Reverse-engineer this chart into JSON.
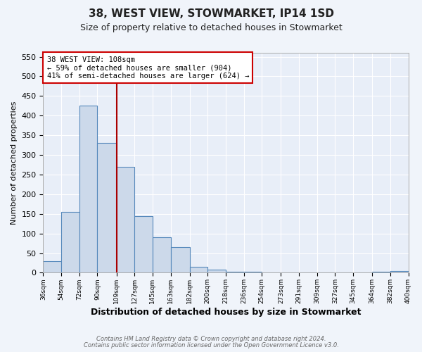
{
  "title1": "38, WEST VIEW, STOWMARKET, IP14 1SD",
  "title2": "Size of property relative to detached houses in Stowmarket",
  "xlabel": "Distribution of detached houses by size in Stowmarket",
  "ylabel": "Number of detached properties",
  "footnote1": "Contains HM Land Registry data © Crown copyright and database right 2024.",
  "footnote2": "Contains public sector information licensed under the Open Government Licence v3.0.",
  "bar_edges": [
    36,
    54,
    72,
    90,
    109,
    127,
    145,
    163,
    182,
    200,
    218,
    236,
    254,
    273,
    291,
    309,
    327,
    345,
    364,
    382,
    400
  ],
  "bar_heights": [
    30,
    155,
    425,
    330,
    270,
    145,
    90,
    65,
    15,
    8,
    3,
    2,
    1,
    1,
    1,
    1,
    1,
    1,
    2,
    5,
    0
  ],
  "bar_color": "#ccd9ea",
  "bar_edgecolor": "#5588bb",
  "vline_x": 109,
  "vline_color": "#aa0000",
  "annotation_line1": "38 WEST VIEW: 108sqm",
  "annotation_line2": "← 59% of detached houses are smaller (904)",
  "annotation_line3": "41% of semi-detached houses are larger (624) →",
  "annotation_box_color": "#ffffff",
  "annotation_box_edgecolor": "#cc0000",
  "ylim": [
    0,
    560
  ],
  "yticks": [
    0,
    50,
    100,
    150,
    200,
    250,
    300,
    350,
    400,
    450,
    500,
    550
  ],
  "background_color": "#f0f4fa",
  "plot_bg_color": "#e8eef8",
  "title_fontsize": 11,
  "subtitle_fontsize": 9
}
